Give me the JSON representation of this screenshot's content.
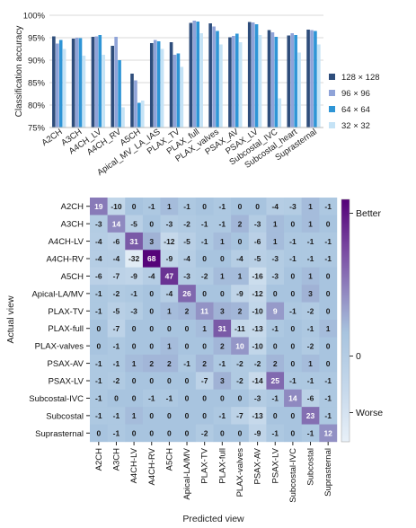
{
  "chart_data": [
    {
      "type": "bar",
      "ylabel": "Classification accuracy",
      "ylim": [
        75,
        100
      ],
      "yticks": [
        "75%",
        "80%",
        "85%",
        "90%",
        "95%",
        "100%"
      ],
      "ytick_values": [
        75,
        80,
        85,
        90,
        95,
        100
      ],
      "legend_position": "right",
      "grid": true,
      "categories": [
        "A2CH",
        "A3CH",
        "A4CH_LV",
        "A4CH_RV",
        "A5CH",
        "Apical_MV_LA_IAS",
        "PLAX_TV",
        "PLAX_full",
        "PLAX_valves",
        "PSAX_AV",
        "PSAX_LV",
        "Subcostal_IVC",
        "Subcostal_heart",
        "Suprasternal"
      ],
      "series": [
        {
          "name": "128 × 128",
          "color": "#2e4d7b",
          "values": [
            95.3,
            94.8,
            95.2,
            93.2,
            87.0,
            93.8,
            94.0,
            98.3,
            98.2,
            95.1,
            98.5,
            96.7,
            95.5,
            96.8
          ]
        },
        {
          "name": "96 × 96",
          "color": "#8fa3d8",
          "values": [
            93.7,
            95.0,
            95.3,
            95.2,
            85.5,
            94.5,
            91.2,
            98.8,
            97.5,
            95.4,
            98.4,
            96.2,
            96.0,
            96.7
          ]
        },
        {
          "name": "64 × 64",
          "color": "#2e95d6",
          "values": [
            94.5,
            94.9,
            95.6,
            90.0,
            80.5,
            94.2,
            91.5,
            98.6,
            96.5,
            95.9,
            98.0,
            95.2,
            95.6,
            96.5
          ]
        },
        {
          "name": "32 × 32",
          "color": "#c5e3f6",
          "values": [
            92.5,
            91.0,
            91.2,
            79.5,
            81.0,
            92.5,
            88.5,
            96.0,
            93.5,
            94.0,
            95.6,
            81.5,
            91.7,
            93.5
          ]
        }
      ]
    },
    {
      "type": "heatmap",
      "xlabel": "Predicted view",
      "ylabel": "Actual view",
      "colorbar_labels": [
        "Better",
        "0",
        "Worse"
      ],
      "labels": [
        "A2CH",
        "A3CH",
        "A4CH-LV",
        "A4CH-RV",
        "A5CH",
        "Apical-LA/MV",
        "PLAX-TV",
        "PLAX-full",
        "PLAX-valves",
        "PSAX-AV",
        "PSAX-LV",
        "Subcostal-IVC",
        "Subcostal",
        "Suprasternal"
      ],
      "matrix": [
        [
          19,
          -10,
          0,
          -1,
          1,
          -1,
          0,
          -1,
          0,
          0,
          -4,
          -3,
          1,
          -1
        ],
        [
          -3,
          14,
          -5,
          0,
          -3,
          -2,
          -1,
          -1,
          2,
          -3,
          1,
          0,
          1,
          0
        ],
        [
          -4,
          -6,
          31,
          3,
          -12,
          -5,
          -1,
          1,
          0,
          -6,
          1,
          -1,
          -1,
          -1
        ],
        [
          -4,
          -4,
          -32,
          68,
          -9,
          -4,
          0,
          0,
          -4,
          -5,
          -3,
          -1,
          -1,
          -1
        ],
        [
          -6,
          -7,
          -9,
          -4,
          47,
          -3,
          -2,
          1,
          1,
          -16,
          -3,
          0,
          1,
          0
        ],
        [
          -1,
          -2,
          -1,
          0,
          -4,
          26,
          0,
          0,
          -9,
          -12,
          0,
          0,
          3,
          0
        ],
        [
          -1,
          -5,
          -3,
          0,
          1,
          2,
          11,
          3,
          2,
          -10,
          9,
          -1,
          -2,
          0
        ],
        [
          0,
          -7,
          0,
          0,
          0,
          0,
          1,
          31,
          -11,
          -13,
          -1,
          0,
          -1,
          1
        ],
        [
          0,
          -1,
          0,
          0,
          1,
          0,
          0,
          2,
          10,
          -10,
          0,
          0,
          -2,
          0
        ],
        [
          -1,
          -1,
          1,
          2,
          2,
          -1,
          2,
          -1,
          -2,
          -2,
          2,
          0,
          1,
          0
        ],
        [
          -1,
          -2,
          0,
          0,
          0,
          0,
          -7,
          3,
          -2,
          -14,
          25,
          -1,
          -1,
          -1
        ],
        [
          -1,
          0,
          0,
          -1,
          -1,
          0,
          0,
          0,
          0,
          -3,
          -1,
          14,
          -6,
          -1
        ],
        [
          -1,
          -1,
          1,
          0,
          0,
          0,
          0,
          -1,
          -7,
          -13,
          0,
          0,
          23,
          -1
        ],
        [
          0,
          -1,
          0,
          0,
          0,
          0,
          -2,
          0,
          0,
          -9,
          -1,
          0,
          -1,
          12
        ]
      ]
    }
  ]
}
